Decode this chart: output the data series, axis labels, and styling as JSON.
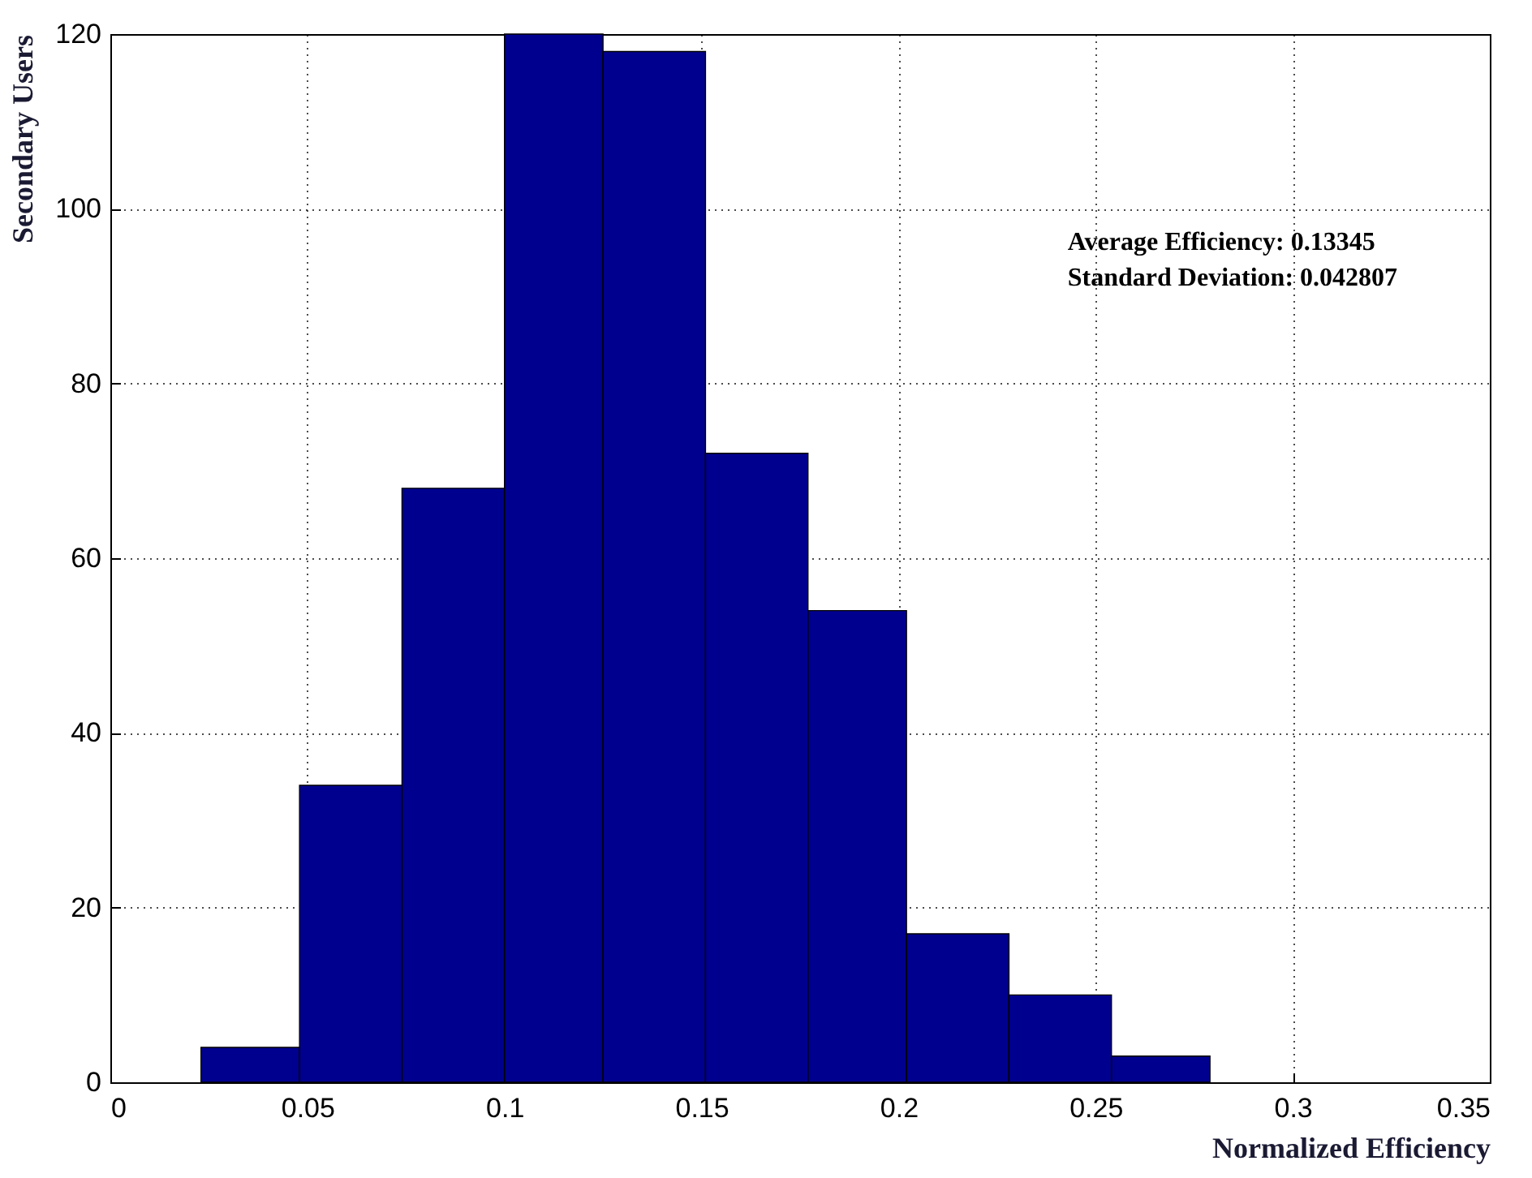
{
  "chart_data": {
    "type": "histogram",
    "xlabel": "Normalized Efficiency",
    "ylabel": "Secondary Users",
    "bins": [
      0.023,
      0.048,
      0.074,
      0.1,
      0.125,
      0.151,
      0.177,
      0.202,
      0.228,
      0.254,
      0.279
    ],
    "values": [
      4,
      34,
      68,
      120,
      118,
      72,
      54,
      17,
      10,
      3
    ],
    "color": "#00008f",
    "xlim": [
      0,
      0.35
    ],
    "xticks": [
      0,
      0.05,
      0.1,
      0.15,
      0.2,
      0.25,
      0.3,
      0.35
    ],
    "ylim": [
      0,
      120
    ],
    "yticks": [
      0,
      20,
      40,
      60,
      80,
      100,
      120
    ],
    "grid": true,
    "annotations": [
      "Average Efficiency: 0.13345",
      "Standard Deviation: 0.042807"
    ]
  }
}
